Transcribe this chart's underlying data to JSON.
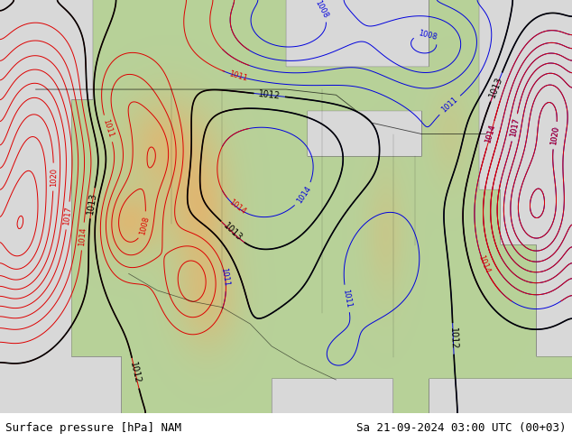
{
  "title_left": "Surface pressure [hPa] NAM",
  "title_right": "Sa 21-09-2024 03:00 UTC (00+03)",
  "land_color": "#b8d898",
  "ocean_color": "#d8d8d8",
  "mountain_color": "#c8c8b0",
  "fig_width": 6.34,
  "fig_height": 4.9,
  "dpi": 100,
  "bottom_bar_color": "#c8c8c8",
  "text_color": "#000000",
  "font_size_label": 9,
  "blue_line_color": "#0000dd",
  "red_line_color": "#dd0000",
  "black_line_color": "#000000"
}
